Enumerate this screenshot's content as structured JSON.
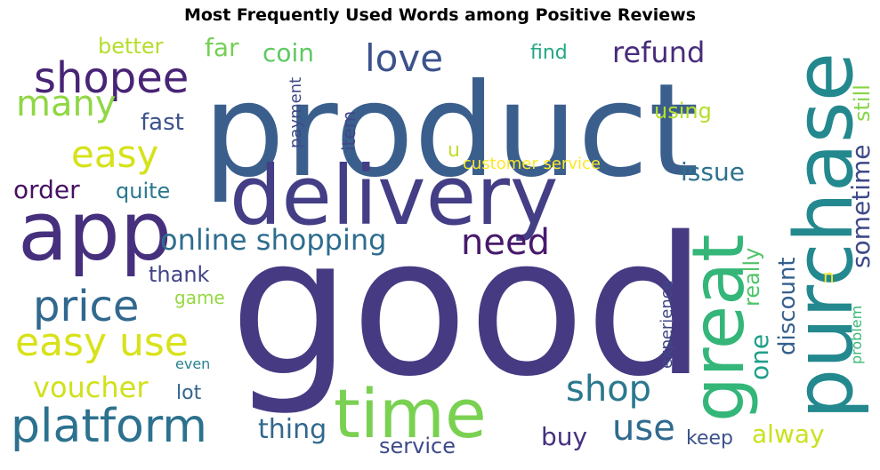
{
  "chart_data": {
    "type": "wordcloud",
    "title": "Most Frequently Used Words among Positive Reviews",
    "words": [
      {
        "text": "good",
        "color": "#463b82"
      },
      {
        "text": "product",
        "color": "#3b5f8d"
      },
      {
        "text": "delivery",
        "color": "#433e85"
      },
      {
        "text": "app",
        "color": "#46307e"
      },
      {
        "text": "purchase",
        "color": "#23898e"
      },
      {
        "text": "great",
        "color": "#34b679"
      },
      {
        "text": "time",
        "color": "#7ad151"
      },
      {
        "text": "platform",
        "color": "#2c728e"
      },
      {
        "text": "shopee",
        "color": "#482475"
      },
      {
        "text": "price",
        "color": "#31688e"
      },
      {
        "text": "easy use",
        "color": "#d8e219"
      },
      {
        "text": "love",
        "color": "#3b528b"
      },
      {
        "text": "easy",
        "color": "#d5e21a"
      },
      {
        "text": "many",
        "color": "#8fd744"
      },
      {
        "text": "need",
        "color": "#481a6c"
      },
      {
        "text": "shop",
        "color": "#2a788e"
      },
      {
        "text": "use",
        "color": "#306a8e"
      },
      {
        "text": "online shopping",
        "color": "#2e6d8e"
      },
      {
        "text": "refund",
        "color": "#472c7a"
      },
      {
        "text": "voucher",
        "color": "#d0e11c"
      },
      {
        "text": "thing",
        "color": "#31688e"
      },
      {
        "text": "sometime",
        "color": "#3e4989"
      },
      {
        "text": "order",
        "color": "#471063"
      },
      {
        "text": "issue",
        "color": "#2d718e"
      },
      {
        "text": "alway",
        "color": "#cae11f"
      },
      {
        "text": "buy",
        "color": "#46307e"
      },
      {
        "text": "coin",
        "color": "#5ec962"
      },
      {
        "text": "discount",
        "color": "#35608d"
      },
      {
        "text": "one",
        "color": "#1f9f88"
      },
      {
        "text": "far",
        "color": "#75d054"
      },
      {
        "text": "fast",
        "color": "#3b528b"
      },
      {
        "text": "better",
        "color": "#b5de2b"
      },
      {
        "text": "really",
        "color": "#50c46a"
      },
      {
        "text": "service",
        "color": "#3e4a89"
      },
      {
        "text": "quite",
        "color": "#2a788e"
      },
      {
        "text": "using",
        "color": "#b5de2b"
      },
      {
        "text": "thank",
        "color": "#414487"
      },
      {
        "text": "still",
        "color": "#86d549"
      },
      {
        "text": "keep",
        "color": "#3b528b"
      },
      {
        "text": "find",
        "color": "#22a884"
      },
      {
        "text": "lot",
        "color": "#32658e"
      },
      {
        "text": "game",
        "color": "#95d840"
      },
      {
        "text": "item",
        "color": "#404688"
      },
      {
        "text": "customer service",
        "color": "#fde725"
      },
      {
        "text": "payment",
        "color": "#3e4a89"
      },
      {
        "text": "experience",
        "color": "#3f4788"
      },
      {
        "text": "problem",
        "color": "#38b977"
      },
      {
        "text": "u",
        "color": "#bddf26"
      },
      {
        "text": "n",
        "color": "#fde725"
      },
      {
        "text": "even",
        "color": "#26828e"
      }
    ]
  }
}
